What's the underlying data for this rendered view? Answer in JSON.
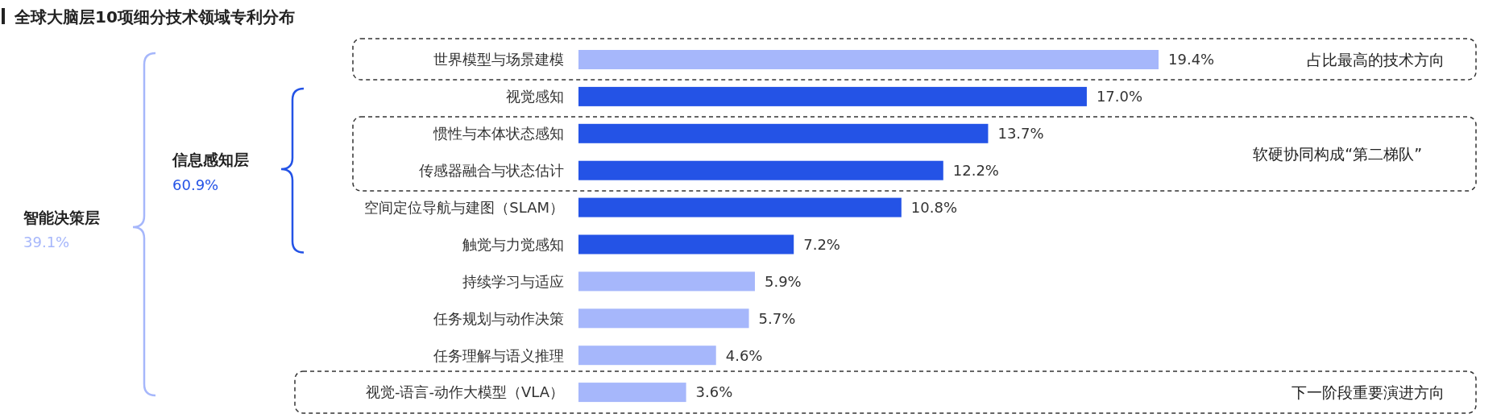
{
  "chart_data": {
    "type": "bar",
    "orientation": "horizontal",
    "title": "全球大脑层10项细分技术领域专利分布",
    "categories": [
      "世界模型与场景建模",
      "视觉感知",
      "惯性与本体状态感知",
      "传感器融合与状态估计",
      "空间定位导航与建图（SLAM）",
      "触觉与力觉感知",
      "持续学习与适应",
      "任务规划与动作决策",
      "任务理解与语义推理",
      "视觉-语言-动作大模型（VLA）"
    ],
    "values": [
      19.4,
      17.0,
      13.7,
      12.2,
      10.8,
      7.2,
      5.9,
      5.7,
      4.6,
      3.6
    ],
    "colors": [
      "#a6b7fb",
      "#2453e6",
      "#2453e6",
      "#2453e6",
      "#2453e6",
      "#2453e6",
      "#a6b7fb",
      "#a6b7fb",
      "#a6b7fb",
      "#a6b7fb"
    ],
    "value_labels": [
      "19.4%",
      "17.0%",
      "13.7%",
      "12.2%",
      "10.8%",
      "7.2%",
      "5.9%",
      "5.7%",
      "4.6%",
      "3.6%"
    ],
    "annotations": [
      "智能决策层",
      "39.1%",
      "信息感知层",
      "60.9%",
      "占比最高的技术方向",
      "软硬协同构成“第二梯队”",
      "下一阶段重要演进方向"
    ]
  }
}
